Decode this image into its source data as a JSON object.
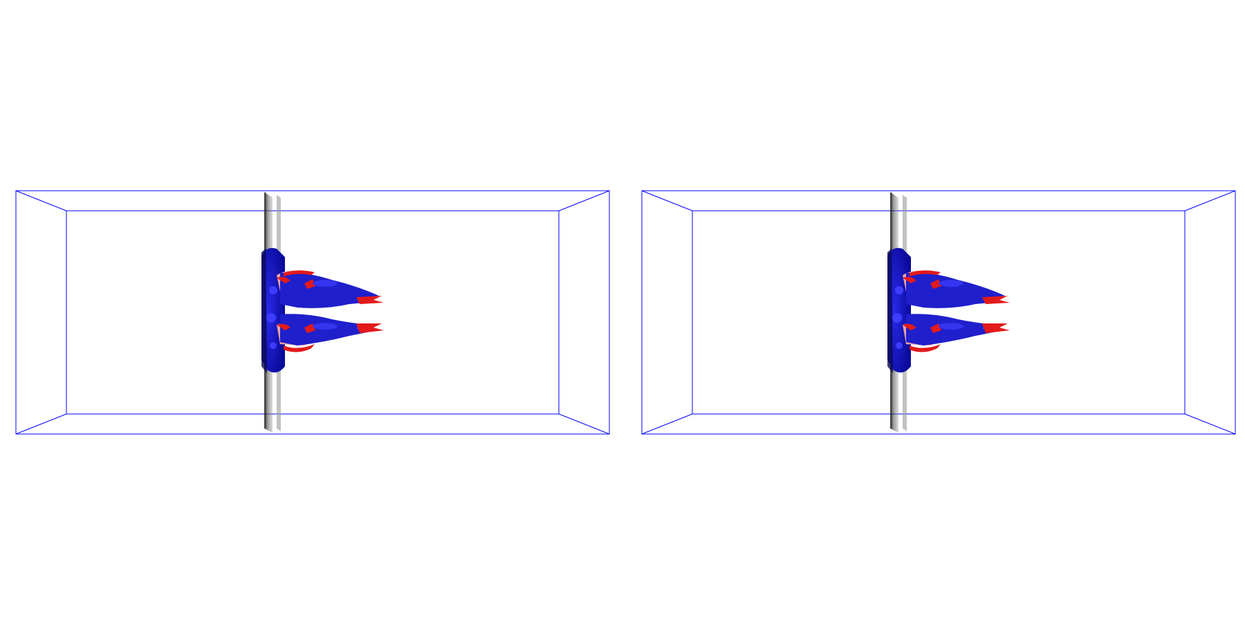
{
  "scene": {
    "background_color": "#ffffff",
    "box_edge_color": "#0000ff",
    "plane_color": "#333333",
    "isosurface_negative_color": "#1a1ad6",
    "isosurface_positive_color": "#e31a1a",
    "isosurface_light_color": "#e8a0a8"
  },
  "viewports": [
    {
      "name": "left-3d-view"
    },
    {
      "name": "right-3d-view"
    }
  ]
}
